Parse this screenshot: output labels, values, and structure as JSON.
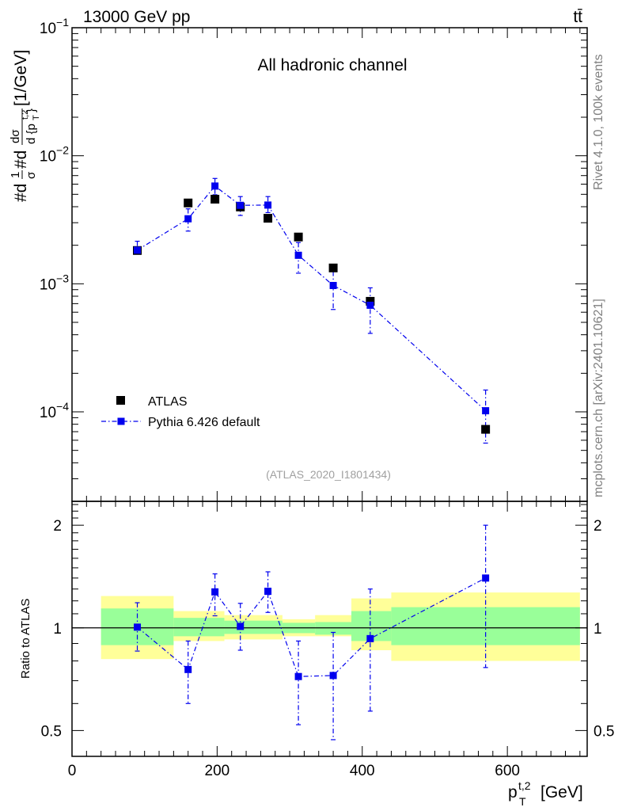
{
  "header": {
    "energy": "13000 GeV pp",
    "process": "tt̄"
  },
  "side_labels": {
    "rivet": "Rivet 4.1.0,  100k events",
    "mcplots": "mcplots.cern.ch [arXiv:2401.10621]"
  },
  "chart_data": [
    {
      "type": "scatter",
      "title": "All hadronic channel",
      "analysis_tag": "(ATLAS_2020_I1801434)",
      "ylabel": "#d1/σ#d dσ/d {p_T^{t,2}} [1/GeV]",
      "yscale": "log",
      "xlim": [
        0,
        710
      ],
      "ylim": [
        2e-05,
        0.1
      ],
      "ytick_labels": [
        {
          "base": "10",
          "exp": "−1",
          "value": 0.1
        },
        {
          "base": "10",
          "exp": "−2",
          "value": 0.01
        },
        {
          "base": "10",
          "exp": "−3",
          "value": 0.001
        },
        {
          "base": "10",
          "exp": "−4",
          "value": 0.0001
        }
      ],
      "legend": [
        {
          "label": "ATLAS",
          "color": "#000000",
          "marker": "square"
        },
        {
          "label": "Pythia 6.426 default",
          "color": "#0000ee",
          "marker": "square-dashdot"
        }
      ],
      "series": [
        {
          "name": "ATLAS",
          "color": "#000000",
          "x": [
            90,
            160,
            197,
            232,
            270,
            312,
            360,
            411,
            570
          ],
          "y": [
            0.00182,
            0.00428,
            0.00458,
            0.00398,
            0.00325,
            0.00232,
            0.00133,
            0.00073,
            7.3e-05
          ]
        },
        {
          "name": "Pythia 6.426 default",
          "color": "#0000ee",
          "x": [
            90,
            160,
            197,
            232,
            270,
            312,
            360,
            411,
            570
          ],
          "y": [
            0.00183,
            0.00322,
            0.0058,
            0.0041,
            0.00412,
            0.00167,
            0.00097,
            0.00068,
            0.000102
          ],
          "err_lo": [
            0.00175,
            0.00258,
            0.00496,
            0.00342,
            0.0036,
            0.00121,
            0.00063,
            0.00041,
            5.7e-05
          ],
          "err_hi": [
            0.00215,
            0.00385,
            0.00665,
            0.0048,
            0.0048,
            0.0021,
            0.00125,
            0.00093,
            0.000148
          ]
        }
      ]
    },
    {
      "type": "scatter",
      "ylabel": "Ratio to ATLAS",
      "xlabel": "p_T^{t,2} [GeV]",
      "xlabel_main": "p",
      "xlabel_sup": "t,2",
      "xlabel_sub": "T",
      "xlabel_unit": "[GeV]",
      "xlim": [
        0,
        710
      ],
      "ylim": [
        0.42,
        2.35
      ],
      "yscale": "log",
      "ytick_labels": [
        "0.5",
        "1",
        "2"
      ],
      "ytick_values": [
        0.5,
        1,
        2
      ],
      "xtick_labels": [
        "0",
        "200",
        "400",
        "600"
      ],
      "xtick_values": [
        0,
        200,
        400,
        600
      ],
      "reference_line": 1,
      "bands": {
        "edges": [
          40,
          140,
          210,
          290,
          335,
          385,
          440,
          700
        ],
        "yellow_lo": [
          0.81,
          0.915,
          0.925,
          0.945,
          0.945,
          0.86,
          0.8
        ],
        "yellow_hi": [
          1.24,
          1.12,
          1.09,
          1.06,
          1.09,
          1.22,
          1.27
        ],
        "green_lo": [
          0.89,
          0.945,
          0.96,
          0.965,
          0.955,
          0.915,
          0.89
        ],
        "green_hi": [
          1.14,
          1.07,
          1.05,
          1.035,
          1.04,
          1.12,
          1.15
        ],
        "yellow_color": "#ffff99",
        "green_color": "#99ff99"
      },
      "series": [
        {
          "name": "Pythia 6.426 default",
          "color": "#0000ee",
          "x": [
            90,
            160,
            197,
            232,
            270,
            312,
            360,
            411,
            570
          ],
          "y": [
            1.005,
            0.755,
            1.275,
            1.01,
            1.28,
            0.72,
            0.725,
            0.93,
            1.4
          ],
          "err_lo": [
            0.855,
            0.6,
            1.085,
            0.86,
            1.11,
            0.52,
            0.47,
            0.57,
            0.765
          ],
          "err_hi": [
            1.185,
            0.915,
            1.44,
            1.18,
            1.46,
            0.915,
            0.97,
            1.3,
            2.0
          ]
        }
      ]
    }
  ]
}
